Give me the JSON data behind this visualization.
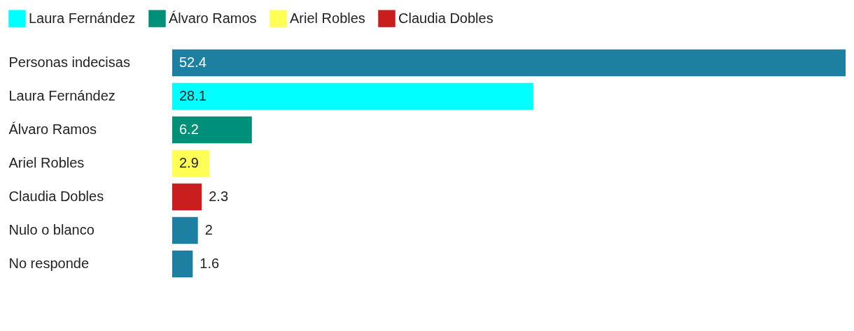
{
  "chart_data": {
    "type": "bar",
    "orientation": "horizontal",
    "categories": [
      "Personas indecisas",
      "Laura Fernández",
      "Álvaro Ramos",
      "Ariel Robles",
      "Claudia Dobles",
      "Nulo o blanco",
      "No responde"
    ],
    "series": [
      {
        "color": "#1d80a1",
        "values": [
          52.4,
          null,
          null,
          null,
          null,
          2,
          1.6
        ]
      },
      {
        "name": "Laura Fernández",
        "color": "#00ffff",
        "values": [
          null,
          28.1,
          null,
          null,
          null,
          null,
          null
        ]
      },
      {
        "name": "Álvaro Ramos",
        "color": "#008f78",
        "values": [
          null,
          null,
          6.2,
          null,
          null,
          null,
          null
        ]
      },
      {
        "name": "Ariel Robles",
        "color": "#ffff55",
        "values": [
          null,
          null,
          null,
          2.9,
          null,
          null,
          null
        ]
      },
      {
        "name": "Claudia Dobles",
        "color": "#c91d1e",
        "values": [
          null,
          null,
          null,
          null,
          2.3,
          null,
          null
        ]
      }
    ],
    "data_labels": true,
    "legend": "top left"
  }
}
